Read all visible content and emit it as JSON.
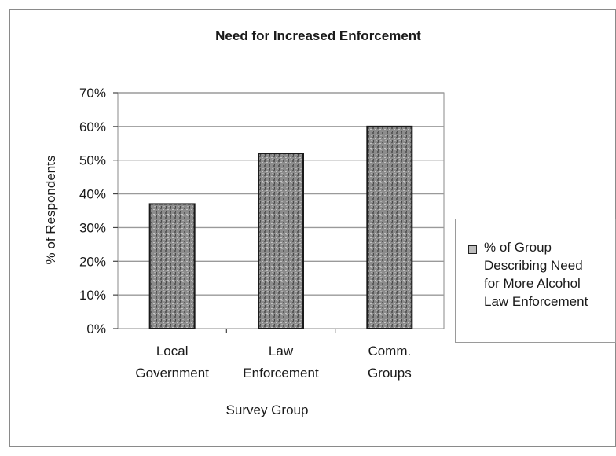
{
  "chart_data": {
    "type": "bar",
    "title": "Need for Increased Enforcement",
    "xlabel": "Survey Group",
    "ylabel": "% of Respondents",
    "ylim": [
      0,
      70
    ],
    "ytick_labels": [
      "0%",
      "10%",
      "20%",
      "30%",
      "40%",
      "50%",
      "60%",
      "70%"
    ],
    "categories": [
      [
        "Local",
        "Government"
      ],
      [
        "Law",
        "Enforcement"
      ],
      [
        "Comm.",
        "Groups"
      ]
    ],
    "series": [
      {
        "name": "% of Group Describing Need for More Alcohol Law Enforcement",
        "values": [
          37,
          52,
          60
        ]
      }
    ],
    "grid": true,
    "legend_position": "right",
    "bar_color": "#7a7a7a",
    "bar_border_color": "#1a1a1a",
    "gridline_color": "#9a9a9a"
  },
  "legend": {
    "lines": [
      "% of Group",
      "Describing Need",
      "for More Alcohol",
      "Law Enforcement"
    ]
  }
}
